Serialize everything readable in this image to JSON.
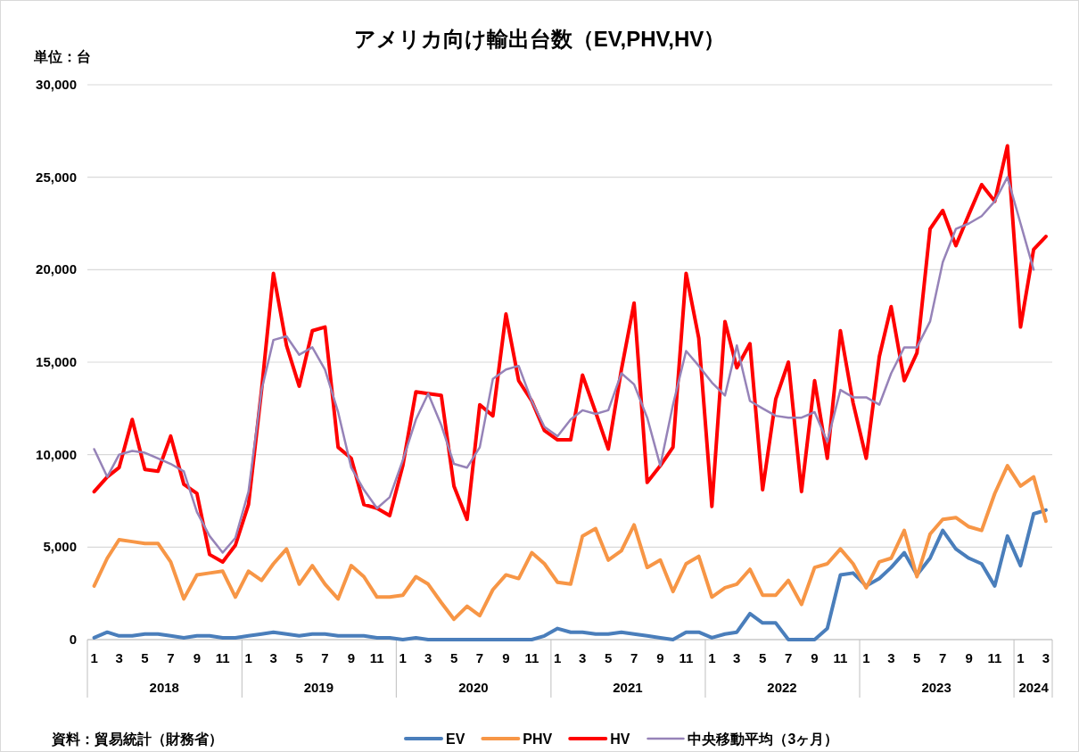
{
  "chart_data": {
    "type": "line",
    "title": "アメリカ向け輸出台数（EV,PHV,HV）",
    "ylabel": "単位：台",
    "x": [
      "2018-01",
      "2018-02",
      "2018-03",
      "2018-04",
      "2018-05",
      "2018-06",
      "2018-07",
      "2018-08",
      "2018-09",
      "2018-10",
      "2018-11",
      "2018-12",
      "2019-01",
      "2019-02",
      "2019-03",
      "2019-04",
      "2019-05",
      "2019-06",
      "2019-07",
      "2019-08",
      "2019-09",
      "2019-10",
      "2019-11",
      "2019-12",
      "2020-01",
      "2020-02",
      "2020-03",
      "2020-04",
      "2020-05",
      "2020-06",
      "2020-07",
      "2020-08",
      "2020-09",
      "2020-10",
      "2020-11",
      "2020-12",
      "2021-01",
      "2021-02",
      "2021-03",
      "2021-04",
      "2021-05",
      "2021-06",
      "2021-07",
      "2021-08",
      "2021-09",
      "2021-10",
      "2021-11",
      "2021-12",
      "2022-01",
      "2022-02",
      "2022-03",
      "2022-04",
      "2022-05",
      "2022-06",
      "2022-07",
      "2022-08",
      "2022-09",
      "2022-10",
      "2022-11",
      "2022-12",
      "2023-01",
      "2023-02",
      "2023-03",
      "2023-04",
      "2023-05",
      "2023-06",
      "2023-07",
      "2023-08",
      "2023-09",
      "2023-10",
      "2023-11",
      "2023-12",
      "2024-01",
      "2024-02",
      "2024-03"
    ],
    "series": [
      {
        "name": "EV",
        "color": "#4a7ebb",
        "values": [
          100,
          400,
          200,
          200,
          300,
          300,
          200,
          100,
          200,
          200,
          100,
          100,
          200,
          300,
          400,
          300,
          200,
          300,
          300,
          200,
          200,
          200,
          100,
          100,
          0,
          100,
          0,
          0,
          0,
          0,
          0,
          0,
          0,
          0,
          0,
          200,
          600,
          400,
          400,
          300,
          300,
          400,
          300,
          200,
          100,
          0,
          400,
          400,
          100,
          300,
          400,
          1400,
          900,
          900,
          0,
          0,
          0,
          600,
          3500,
          3600,
          2900,
          3300,
          3900,
          4700,
          3500,
          4400,
          5900,
          4900,
          4400,
          4100,
          2900,
          5600,
          4000,
          6800,
          7000
        ]
      },
      {
        "name": "PHV",
        "color": "#f79646",
        "values": [
          2900,
          4400,
          5400,
          5300,
          5200,
          5200,
          4200,
          2200,
          3500,
          3600,
          3700,
          2300,
          3700,
          3200,
          4100,
          4900,
          3000,
          4000,
          3000,
          2200,
          4000,
          3400,
          2300,
          2300,
          2400,
          3400,
          3000,
          2000,
          1100,
          1800,
          1300,
          2700,
          3500,
          3300,
          4700,
          4100,
          3100,
          3000,
          5600,
          6000,
          4300,
          4800,
          6200,
          3900,
          4300,
          2600,
          4100,
          4500,
          2300,
          2800,
          3000,
          3800,
          2400,
          2400,
          3200,
          1900,
          3900,
          4100,
          4900,
          4100,
          2800,
          4200,
          4400,
          5900,
          3400,
          5700,
          6500,
          6600,
          6100,
          5900,
          7900,
          9400,
          8300,
          8800,
          6400
        ]
      },
      {
        "name": "HV",
        "color": "#ff0000",
        "values": [
          8000,
          8800,
          9300,
          11900,
          9200,
          9100,
          11000,
          8400,
          7900,
          4600,
          4200,
          5100,
          7300,
          13500,
          19800,
          15900,
          13700,
          16700,
          16900,
          10400,
          9800,
          7300,
          7100,
          6700,
          9400,
          13400,
          13300,
          13200,
          8300,
          6500,
          12700,
          12100,
          17600,
          14000,
          12900,
          11300,
          10800,
          10800,
          14300,
          12300,
          10300,
          14600,
          18200,
          8500,
          9400,
          10400,
          19800,
          16300,
          7200,
          17200,
          14700,
          16000,
          8100,
          13000,
          15000,
          8000,
          14000,
          9800,
          16700,
          12800,
          9800,
          15300,
          18000,
          14000,
          15500,
          22200,
          23200,
          21300,
          23000,
          24600,
          23700,
          26700,
          16900,
          21100,
          21800
        ]
      },
      {
        "name": "中央移動平均（3ヶ月）",
        "color": "#9683b8",
        "values": [
          10300,
          8800,
          10000,
          10200,
          10100,
          9800,
          9500,
          9100,
          6900,
          5600,
          4700,
          5500,
          8000,
          13500,
          16200,
          16400,
          15400,
          15800,
          14600,
          12300,
          9300,
          8100,
          7100,
          7700,
          9700,
          11900,
          13300,
          11600,
          9500,
          9300,
          10400,
          14100,
          14600,
          14800,
          12900,
          11500,
          11000,
          11900,
          12400,
          12200,
          12400,
          14400,
          13800,
          12000,
          9400,
          12700,
          15600,
          14800,
          13900,
          13200,
          15900,
          12900,
          12500,
          12100,
          12000,
          12000,
          12300,
          10700,
          13500,
          13100,
          13100,
          12700,
          14400,
          15800,
          15800,
          17200,
          20400,
          22200,
          22500,
          22900,
          23700,
          25000,
          22500,
          20000,
          null
        ]
      }
    ],
    "xlim": [
      "2017-12-16",
      "2024-03-16"
    ],
    "xticks": [
      {
        "value": "2018-01",
        "label": "1"
      },
      {
        "value": "2018-03",
        "label": "3"
      },
      {
        "value": "2018-05",
        "label": "5"
      },
      {
        "value": "2018-07",
        "label": "7"
      },
      {
        "value": "2018-09",
        "label": "9"
      },
      {
        "value": "2018-11",
        "label": "11"
      },
      {
        "value": "2019-01",
        "label": "1"
      },
      {
        "value": "2019-03",
        "label": "3"
      },
      {
        "value": "2019-05",
        "label": "5"
      },
      {
        "value": "2019-07",
        "label": "7"
      },
      {
        "value": "2019-09",
        "label": "9"
      },
      {
        "value": "2019-11",
        "label": "11"
      },
      {
        "value": "2020-01",
        "label": "1"
      },
      {
        "value": "2020-03",
        "label": "3"
      },
      {
        "value": "2020-05",
        "label": "5"
      },
      {
        "value": "2020-07",
        "label": "7"
      },
      {
        "value": "2020-09",
        "label": "9"
      },
      {
        "value": "2020-11",
        "label": "11"
      },
      {
        "value": "2021-01",
        "label": "1"
      },
      {
        "value": "2021-03",
        "label": "3"
      },
      {
        "value": "2021-05",
        "label": "5"
      },
      {
        "value": "2021-07",
        "label": "7"
      },
      {
        "value": "2021-09",
        "label": "9"
      },
      {
        "value": "2021-11",
        "label": "11"
      },
      {
        "value": "2022-01",
        "label": "1"
      },
      {
        "value": "2022-03",
        "label": "3"
      },
      {
        "value": "2022-05",
        "label": "5"
      },
      {
        "value": "2022-07",
        "label": "7"
      },
      {
        "value": "2022-09",
        "label": "9"
      },
      {
        "value": "2022-11",
        "label": "11"
      },
      {
        "value": "2023-01",
        "label": "1"
      },
      {
        "value": "2023-03",
        "label": "3"
      },
      {
        "value": "2023-05",
        "label": "5"
      },
      {
        "value": "2023-07",
        "label": "7"
      },
      {
        "value": "2023-09",
        "label": "9"
      },
      {
        "value": "2023-11",
        "label": "11"
      },
      {
        "value": "2024-01",
        "label": "1"
      },
      {
        "value": "2024-03",
        "label": "3"
      }
    ],
    "x2lim": [
      "2017-12-16",
      "2024-03-16"
    ],
    "x2ticks": [
      {
        "value": "2018-06-16",
        "label": "2018"
      },
      {
        "value": "2019-06-16",
        "label": "2019"
      },
      {
        "value": "2020-06-16",
        "label": "2020"
      },
      {
        "value": "2021-06-16",
        "label": "2021"
      },
      {
        "value": "2022-06-16",
        "label": "2022"
      },
      {
        "value": "2023-06-16",
        "label": "2023"
      },
      {
        "value": "2024-02",
        "label": "2024"
      }
    ],
    "ylim": [
      0,
      30000
    ],
    "yticks": [
      {
        "value": 0,
        "label": "0"
      },
      {
        "value": 5000,
        "label": "5,000"
      },
      {
        "value": 10000,
        "label": "10,000"
      },
      {
        "value": 15000,
        "label": "15,000"
      },
      {
        "value": 20000,
        "label": "20,000"
      },
      {
        "value": 25000,
        "label": "25,000"
      },
      {
        "value": 30000,
        "label": "30,000"
      }
    ],
    "grid": "y",
    "legend": "bottom",
    "marker": "none",
    "line_style": "solid",
    "annotations": [
      "資料：貿易統計（財務省）"
    ]
  }
}
